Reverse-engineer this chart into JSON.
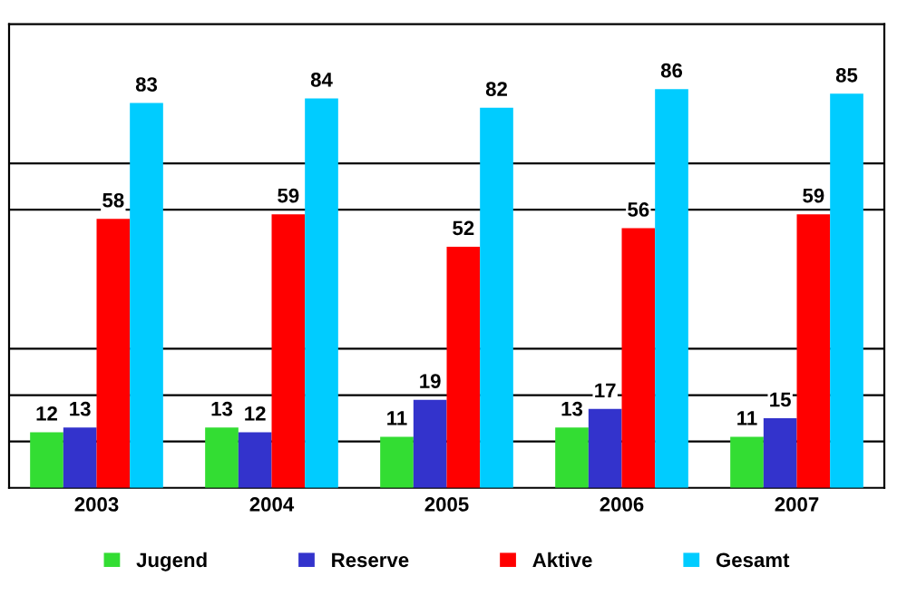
{
  "chart_data": {
    "type": "bar",
    "categories": [
      "2003",
      "2004",
      "2005",
      "2006",
      "2007"
    ],
    "series": [
      {
        "name": "Jugend",
        "color": "#33dd33",
        "values": [
          12,
          13,
          11,
          13,
          11
        ]
      },
      {
        "name": "Reserve",
        "color": "#3333cc",
        "values": [
          13,
          12,
          19,
          17,
          15
        ]
      },
      {
        "name": "Aktive",
        "color": "#ff0000",
        "values": [
          58,
          59,
          52,
          56,
          59
        ]
      },
      {
        "name": "Gesamt",
        "color": "#00ccff",
        "values": [
          83,
          84,
          82,
          86,
          85
        ]
      }
    ],
    "ylim": [
      0,
      100
    ],
    "yticks": [
      {
        "value": 10,
        "label": null
      },
      {
        "value": 20,
        "label": null
      },
      {
        "value": 30,
        "label": null
      },
      {
        "value": 60,
        "label": null
      },
      {
        "value": 70,
        "label": null
      }
    ],
    "grid": "y",
    "data_labels": true,
    "legend": "bottom"
  }
}
